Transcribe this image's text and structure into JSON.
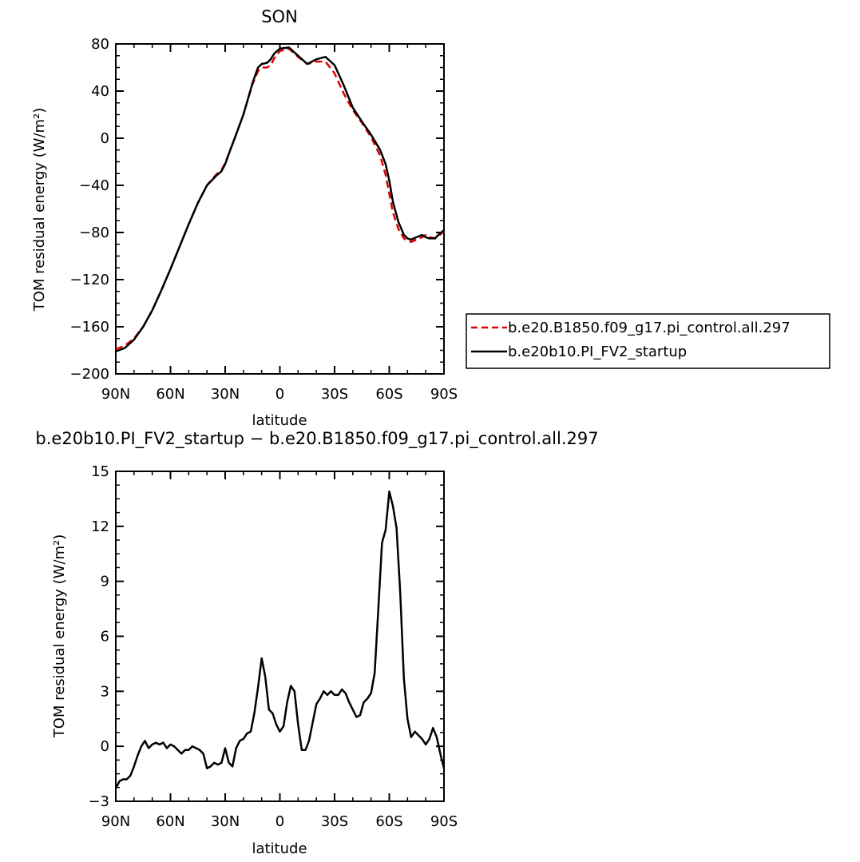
{
  "chart_data": [
    {
      "type": "line",
      "title": "SON",
      "xlabel": "latitude",
      "ylabel": "TOM residual energy (W/m²)",
      "xlim": [
        90,
        -90
      ],
      "ylim": [
        -200,
        80
      ],
      "x_tick_values": [
        90,
        60,
        30,
        0,
        -30,
        -60,
        -90
      ],
      "x_tick_labels": [
        "90N",
        "60N",
        "30N",
        "0",
        "30S",
        "60S",
        "90S"
      ],
      "y_ticks": [
        80,
        40,
        0,
        -40,
        -80,
        -120,
        -160,
        -200
      ],
      "y_tick_labels": [
        "80",
        "40",
        "0",
        "−40",
        "−80",
        "−120",
        "−160",
        "−200"
      ],
      "legend_placement": "right",
      "series": [
        {
          "name": "b.e20.B1850.f09_g17.pi_control.all.297",
          "color": "#e00000",
          "dash": "dashed",
          "x": [
            90,
            85,
            80,
            75,
            70,
            65,
            60,
            55,
            50,
            45,
            40,
            35,
            32,
            30,
            27,
            25,
            20,
            15,
            12,
            10,
            7,
            5,
            3,
            0,
            -5,
            -10,
            -15,
            -20,
            -25,
            -30,
            -35,
            -40,
            -45,
            -50,
            -55,
            -58,
            -60,
            -62,
            -65,
            -68,
            -70,
            -72,
            -75,
            -78,
            -80,
            -82,
            -85,
            -87,
            -90
          ],
          "y": [
            -179,
            -176,
            -170,
            -160,
            -146,
            -129,
            -111,
            -92,
            -73,
            -55,
            -40,
            -31,
            -27,
            -21,
            -9,
            -1,
            20,
            46,
            57,
            60,
            60,
            62,
            68,
            74,
            76,
            69,
            63,
            65,
            65,
            55,
            38,
            24,
            13,
            1,
            -15,
            -31,
            -47,
            -63,
            -77,
            -85,
            -87,
            -88,
            -86,
            -84,
            -82,
            -84,
            -85,
            -83,
            -79
          ]
        },
        {
          "name": "b.e20b10.PI_FV2_startup",
          "color": "#000000",
          "dash": "solid",
          "x": [
            90,
            85,
            80,
            75,
            70,
            65,
            60,
            55,
            50,
            45,
            40,
            35,
            32,
            30,
            27,
            25,
            20,
            15,
            12,
            10,
            7,
            5,
            3,
            0,
            -5,
            -10,
            -15,
            -20,
            -25,
            -30,
            -35,
            -40,
            -45,
            -50,
            -55,
            -58,
            -60,
            -62,
            -65,
            -68,
            -70,
            -72,
            -75,
            -78,
            -80,
            -82,
            -85,
            -87,
            -90
          ],
          "y": [
            -181,
            -178,
            -171,
            -160,
            -146,
            -129,
            -111,
            -92,
            -73,
            -55,
            -40,
            -32,
            -28,
            -22,
            -9,
            -1,
            20,
            47,
            60,
            63,
            64,
            67,
            72,
            76,
            77,
            70,
            63,
            67,
            69,
            62,
            45,
            26,
            14,
            3,
            -10,
            -22,
            -36,
            -54,
            -71,
            -82,
            -85,
            -86,
            -84,
            -82,
            -84,
            -85,
            -85,
            -82,
            -78
          ]
        }
      ]
    },
    {
      "type": "line",
      "title": "b.e20b10.PI_FV2_startup − b.e20.B1850.f09_g17.pi_control.all.297",
      "xlabel": "latitude",
      "ylabel": "TOM residual energy (W/m²)",
      "xlim": [
        90,
        -90
      ],
      "ylim": [
        -3,
        15
      ],
      "x_tick_values": [
        90,
        60,
        30,
        0,
        -30,
        -60,
        -90
      ],
      "x_tick_labels": [
        "90N",
        "60N",
        "30N",
        "0",
        "30S",
        "60S",
        "90S"
      ],
      "y_ticks": [
        15,
        12,
        9,
        6,
        3,
        0,
        -3
      ],
      "y_tick_labels": [
        "15",
        "12",
        "9",
        "6",
        "3",
        "0",
        "−3"
      ],
      "series": [
        {
          "color": "#000000",
          "dash": "solid",
          "x": [
            90,
            88,
            86,
            84,
            82,
            80,
            78,
            76,
            74,
            72,
            70,
            68,
            66,
            64,
            62,
            60,
            58,
            56,
            54,
            52,
            50,
            48,
            46,
            44,
            42,
            40,
            38,
            36,
            34,
            32,
            30,
            28,
            26,
            24,
            22,
            20,
            18,
            16,
            14,
            12,
            10,
            8,
            6,
            4,
            2,
            0,
            -2,
            -4,
            -6,
            -8,
            -10,
            -12,
            -14,
            -16,
            -18,
            -20,
            -22,
            -24,
            -26,
            -28,
            -30,
            -32,
            -34,
            -36,
            -38,
            -40,
            -42,
            -44,
            -46,
            -48,
            -50,
            -52,
            -54,
            -56,
            -58,
            -60,
            -62,
            -64,
            -66,
            -68,
            -70,
            -72,
            -74,
            -76,
            -78,
            -80,
            -82,
            -84,
            -86,
            -88,
            -90
          ],
          "y": [
            -2.3,
            -1.9,
            -1.8,
            -1.8,
            -1.6,
            -1.1,
            -0.5,
            0.0,
            0.3,
            -0.1,
            0.1,
            0.2,
            0.1,
            0.2,
            -0.1,
            0.1,
            0.0,
            -0.2,
            -0.4,
            -0.2,
            -0.2,
            0.0,
            -0.1,
            -0.2,
            -0.4,
            -1.2,
            -1.1,
            -0.9,
            -1.0,
            -0.9,
            -0.1,
            -0.9,
            -1.1,
            -0.1,
            0.3,
            0.4,
            0.7,
            0.8,
            1.8,
            3.2,
            4.8,
            3.8,
            2.0,
            1.8,
            1.2,
            0.8,
            1.1,
            2.4,
            3.3,
            3.0,
            1.2,
            -0.2,
            -0.2,
            0.3,
            1.3,
            2.3,
            2.6,
            3.0,
            2.8,
            3.0,
            2.8,
            2.8,
            3.1,
            2.9,
            2.4,
            2.0,
            1.6,
            1.7,
            2.4,
            2.6,
            2.9,
            4.0,
            7.5,
            11.1,
            11.8,
            13.9,
            13.1,
            11.9,
            8.4,
            3.7,
            1.5,
            0.5,
            0.8,
            0.6,
            0.4,
            0.1,
            0.4,
            1.0,
            0.5,
            -0.4,
            -1.2
          ]
        }
      ]
    }
  ]
}
